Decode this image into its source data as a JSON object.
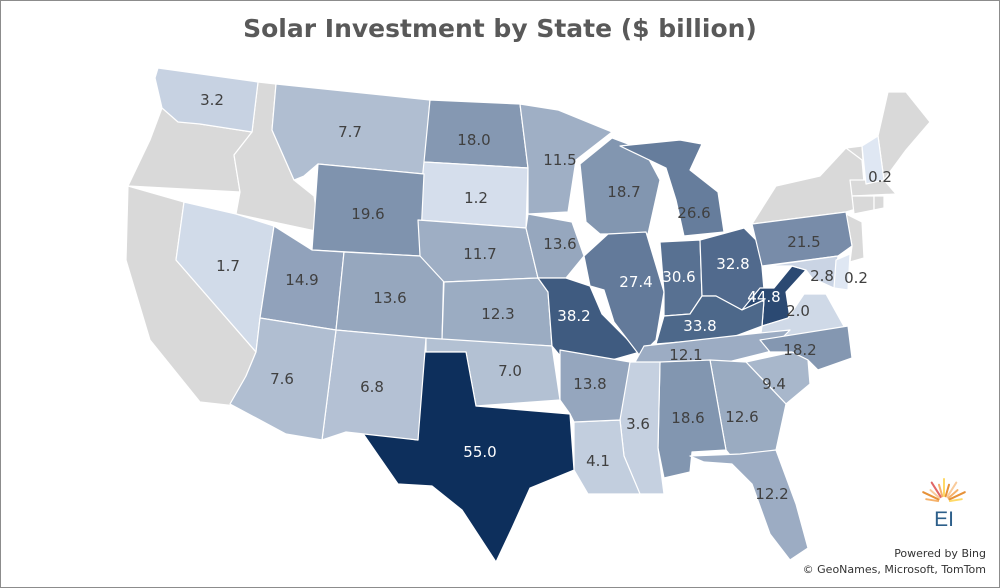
{
  "title": "Solar Investment by State ($ billion)",
  "legend_scale": {
    "min": 0.2,
    "max": 55.0,
    "low_color": "#dfe7f3",
    "high_color": "#0d2f5c",
    "no_data_color": "#d9d9d9"
  },
  "chart_data": {
    "type": "choropleth",
    "title": "Solar Investment by State ($ billion)",
    "unit": "$ billion",
    "states": [
      {
        "state": "Washington",
        "value": 3.2
      },
      {
        "state": "Montana",
        "value": 7.7
      },
      {
        "state": "North Dakota",
        "value": 18.0
      },
      {
        "state": "South Dakota",
        "value": 1.2
      },
      {
        "state": "Minnesota",
        "value": 11.5
      },
      {
        "state": "Wisconsin",
        "value": 18.7
      },
      {
        "state": "Michigan",
        "value": 26.6
      },
      {
        "state": "Wyoming",
        "value": 19.6
      },
      {
        "state": "Nevada",
        "value": 1.7
      },
      {
        "state": "Utah",
        "value": 14.9
      },
      {
        "state": "Colorado",
        "value": 13.6
      },
      {
        "state": "Nebraska",
        "value": 11.7
      },
      {
        "state": "Kansas",
        "value": 12.3
      },
      {
        "state": "Iowa",
        "value": 13.6
      },
      {
        "state": "Missouri",
        "value": 38.2
      },
      {
        "state": "Illinois",
        "value": 27.4
      },
      {
        "state": "Indiana",
        "value": 30.6
      },
      {
        "state": "Ohio",
        "value": 32.8
      },
      {
        "state": "Pennsylvania",
        "value": 21.5
      },
      {
        "state": "West Virginia",
        "value": 44.8
      },
      {
        "state": "Maryland",
        "value": 2.8
      },
      {
        "state": "Delaware",
        "value": 0.2
      },
      {
        "state": "Virginia",
        "value": 2.0
      },
      {
        "state": "Kentucky",
        "value": 33.8
      },
      {
        "state": "Tennessee",
        "value": 12.1
      },
      {
        "state": "North Carolina",
        "value": 18.2
      },
      {
        "state": "South Carolina",
        "value": 9.4
      },
      {
        "state": "Georgia",
        "value": 12.6
      },
      {
        "state": "Alabama",
        "value": 18.6
      },
      {
        "state": "Mississippi",
        "value": 3.6
      },
      {
        "state": "Louisiana",
        "value": 4.1
      },
      {
        "state": "Arkansas",
        "value": 13.8
      },
      {
        "state": "Oklahoma",
        "value": 7.0
      },
      {
        "state": "Texas",
        "value": 55.0
      },
      {
        "state": "New Mexico",
        "value": 6.8
      },
      {
        "state": "Arizona",
        "value": 7.6
      },
      {
        "state": "Florida",
        "value": 12.2
      },
      {
        "state": "New Hampshire",
        "value": 0.2
      }
    ],
    "no_data_states": [
      "Oregon",
      "California",
      "Idaho",
      "Maine",
      "Vermont",
      "New York",
      "Massachusetts",
      "Connecticut",
      "Rhode Island",
      "New Jersey"
    ]
  },
  "logo": {
    "text": "EI",
    "icon": "sunburst-logo-icon"
  },
  "credits": {
    "line1": "Powered by Bing",
    "line2": "© GeoNames, Microsoft, TomTom"
  }
}
